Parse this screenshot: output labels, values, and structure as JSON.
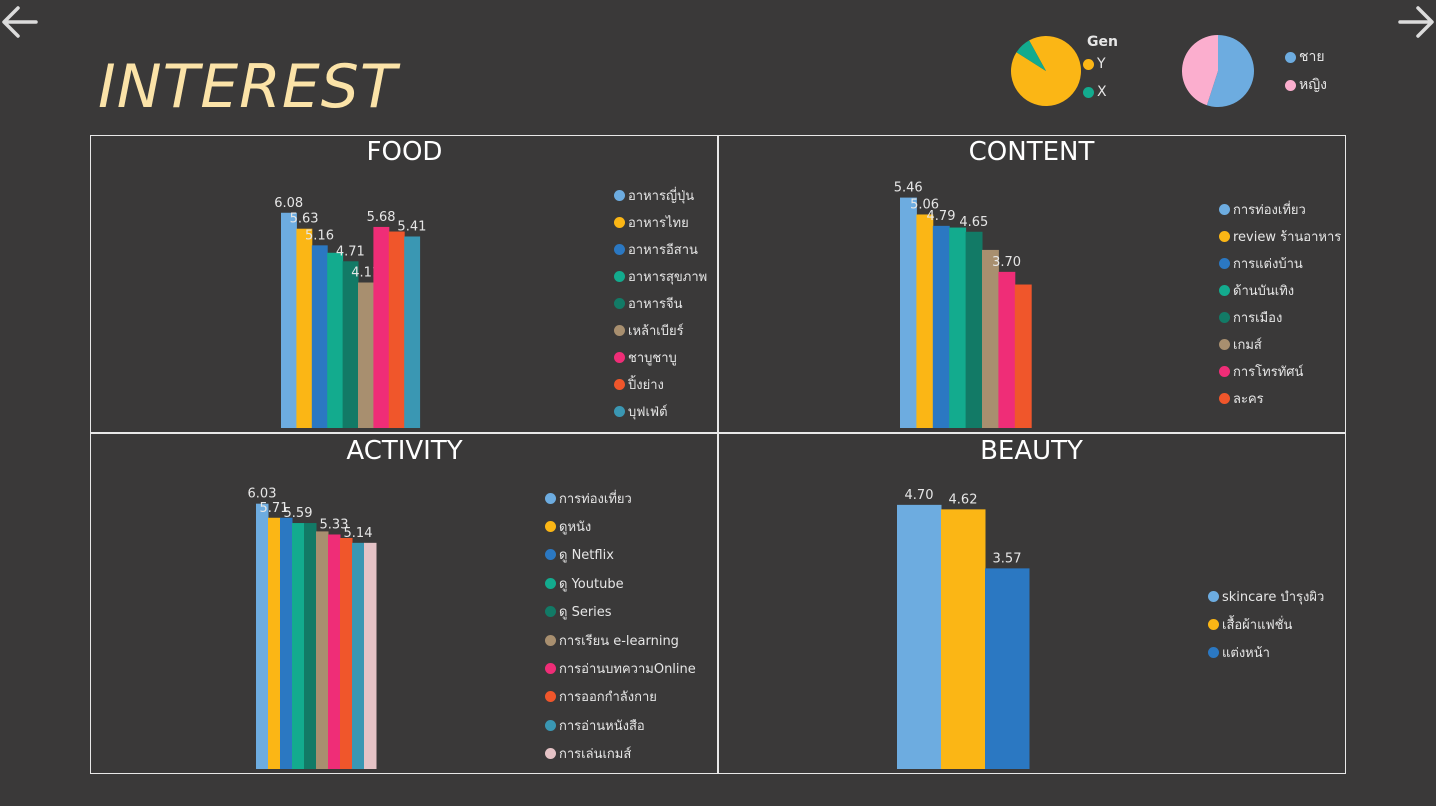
{
  "nav": {
    "back_icon": "arrow-left-icon",
    "forward_icon": "arrow-right-icon"
  },
  "title": "INTEREST",
  "gen_pie": {
    "title": "Gen",
    "slices": [
      {
        "label": "Y",
        "value": 0.92,
        "color": "#fbb615"
      },
      {
        "label": "X",
        "value": 0.08,
        "color": "#13ab8e"
      }
    ]
  },
  "gender_pie": {
    "slices": [
      {
        "label": "ชาย",
        "value": 0.55,
        "color": "#6dace0"
      },
      {
        "label": "หญิง",
        "value": 0.45,
        "color": "#fbaece"
      }
    ]
  },
  "chart_data": [
    {
      "type": "bar",
      "title": "FOOD",
      "categories": [
        "อาหารญี่ปุ่น",
        "อาหารไทย",
        "อาหารอีสาน",
        "อาหารสุขภาพ",
        "อาหารจีน",
        "เหล้าเบียร์",
        "ชาบูชาบู",
        "ปิ้งย่าง",
        "บุฟเฟ่ต์"
      ],
      "values": [
        6.08,
        5.63,
        5.16,
        4.95,
        4.71,
        4.11,
        5.68,
        5.55,
        5.41
      ],
      "data_labels": [
        "6.08",
        "5.63",
        "5.16",
        "",
        "4.71",
        "4.11",
        "5.68",
        "",
        "5.41"
      ],
      "colors": [
        "#6dace0",
        "#fbb615",
        "#2b78c2",
        "#13ab8e",
        "#127a66",
        "#a88f6f",
        "#ef2d77",
        "#f0562b",
        "#3a97b3"
      ],
      "ylim": [
        0,
        7.3
      ]
    },
    {
      "type": "bar",
      "title": "CONTENT",
      "categories": [
        "การท่องเที่ยว",
        "review ร้านอาหาร",
        "การแต่งบ้าน",
        "ด้านบันเทิง",
        "การเมือง",
        "เกมส์",
        "การโทรทัศน์",
        "ละคร"
      ],
      "values": [
        5.46,
        5.06,
        4.79,
        4.75,
        4.65,
        4.22,
        3.7,
        3.4
      ],
      "data_labels": [
        "5.46",
        "5.06",
        "4.79",
        "",
        "4.65",
        "",
        "3.70",
        ""
      ],
      "colors": [
        "#6dace0",
        "#fbb615",
        "#2b78c2",
        "#13ab8e",
        "#127a66",
        "#a88f6f",
        "#ef2d77",
        "#f0562b"
      ],
      "ylim": [
        0,
        6.6
      ]
    },
    {
      "type": "bar",
      "title": "ACTIVITY",
      "categories": [
        "การท่องเที่ยว",
        "ดูหนัง",
        "ดู Netflix",
        "ดู Youtube",
        "ดู Series",
        "การเรียน e-learning",
        "การอ่านบทความOnline",
        "การออกกำลังกาย",
        "การอ่านหนังสือ",
        "การเล่นเกมส์"
      ],
      "values": [
        6.03,
        5.71,
        5.71,
        5.59,
        5.59,
        5.4,
        5.33,
        5.25,
        5.14,
        5.14
      ],
      "data_labels": [
        "6.03",
        "5.71",
        "",
        "5.59",
        "",
        "",
        "5.33",
        "",
        "5.14",
        ""
      ],
      "colors": [
        "#6dace0",
        "#fbb615",
        "#2b78c2",
        "#13ab8e",
        "#127a66",
        "#a88f6f",
        "#ef2d77",
        "#f0562b",
        "#3a97b3",
        "#e5c3c6"
      ],
      "ylim": [
        0,
        6.9
      ]
    },
    {
      "type": "bar",
      "title": "BEAUTY",
      "categories": [
        "skincare บำรุงผิว",
        "เสื้อผ้าแฟชั่น",
        "แต่งหน้า"
      ],
      "values": [
        4.7,
        4.62,
        3.57
      ],
      "data_labels": [
        "4.70",
        "4.62",
        "3.57"
      ],
      "colors": [
        "#6dace0",
        "#fbb615",
        "#2b78c2"
      ],
      "ylim": [
        0,
        5.1
      ]
    }
  ]
}
